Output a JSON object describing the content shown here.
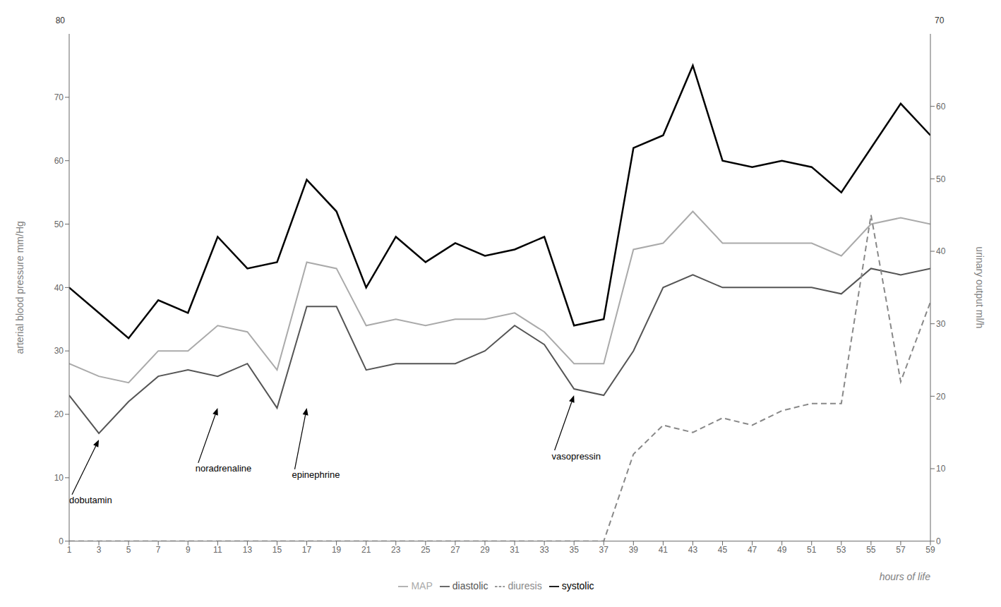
{
  "chart_data": {
    "type": "line",
    "x": [
      1,
      3,
      5,
      7,
      9,
      11,
      13,
      15,
      17,
      19,
      21,
      23,
      25,
      27,
      29,
      31,
      33,
      35,
      37,
      39,
      41,
      43,
      45,
      47,
      49,
      51,
      53,
      55,
      57,
      59
    ],
    "xlim": [
      1,
      59
    ],
    "xticks": [
      1,
      3,
      5,
      7,
      9,
      11,
      13,
      15,
      17,
      19,
      21,
      23,
      25,
      27,
      29,
      31,
      33,
      35,
      37,
      39,
      41,
      43,
      45,
      47,
      49,
      51,
      53,
      55,
      57,
      59
    ],
    "xlabel": "hours of life",
    "ylabel": "arterial blood pressure mm/Hg",
    "y2label": "urinary output ml/h",
    "ylim": [
      0,
      80
    ],
    "yticks": [
      0,
      10,
      20,
      30,
      40,
      50,
      60,
      70
    ],
    "y2lim": [
      0,
      70
    ],
    "y2ticks": [
      0,
      10,
      20,
      30,
      40,
      50,
      60
    ],
    "grid": false,
    "legend": "bottom",
    "series": [
      {
        "name": "systolic",
        "color": "#000000",
        "line_style": "solid",
        "values": [
          40,
          36,
          32,
          38,
          36,
          48,
          43,
          44,
          57,
          52,
          40,
          48,
          44,
          47,
          45,
          46,
          48,
          34,
          35,
          62,
          64,
          75,
          60,
          59,
          60,
          59,
          55,
          62,
          69,
          64
        ]
      },
      {
        "name": "diastolic",
        "color": "#555555",
        "line_style": "solid",
        "values": [
          23,
          17,
          22,
          26,
          27,
          26,
          28,
          21,
          37,
          37,
          27,
          28,
          28,
          28,
          30,
          34,
          31,
          24,
          23,
          30,
          40,
          42,
          40,
          40,
          40,
          40,
          39,
          43,
          42,
          43
        ]
      },
      {
        "name": "MAP",
        "color": "#aaaaaa",
        "line_style": "solid",
        "values": [
          28,
          26,
          25,
          30,
          30,
          34,
          33,
          27,
          44,
          43,
          34,
          35,
          34,
          35,
          35,
          36,
          33,
          28,
          28,
          46,
          47,
          52,
          47,
          47,
          47,
          47,
          45,
          50,
          51,
          50
        ]
      },
      {
        "name": "diuresis",
        "color": "#888888",
        "line_style": "dashed",
        "axis": "y2",
        "values": [
          0,
          0,
          0,
          0,
          0,
          0,
          0,
          0,
          0,
          0,
          0,
          0,
          0,
          0,
          0,
          0,
          0,
          0,
          0,
          12,
          16,
          15,
          17,
          16,
          18,
          19,
          19,
          45,
          22,
          33
        ]
      }
    ],
    "annotations": [
      {
        "text": "dobutamin",
        "x": 3,
        "y": 16,
        "text_x": 1,
        "text_y": 7
      },
      {
        "text": "noradrenaline",
        "x": 11,
        "y": 21,
        "text_x": 9.5,
        "text_y": 12
      },
      {
        "text": "epinephrine",
        "x": 17,
        "y": 21,
        "text_x": 16,
        "text_y": 11
      },
      {
        "text": "vasopressin",
        "x": 35,
        "y": 23,
        "text_x": 33.5,
        "text_y": 14
      },
      {
        "text": "80",
        "axis": "y"
      },
      {
        "text": "70",
        "axis": "y2"
      }
    ]
  }
}
